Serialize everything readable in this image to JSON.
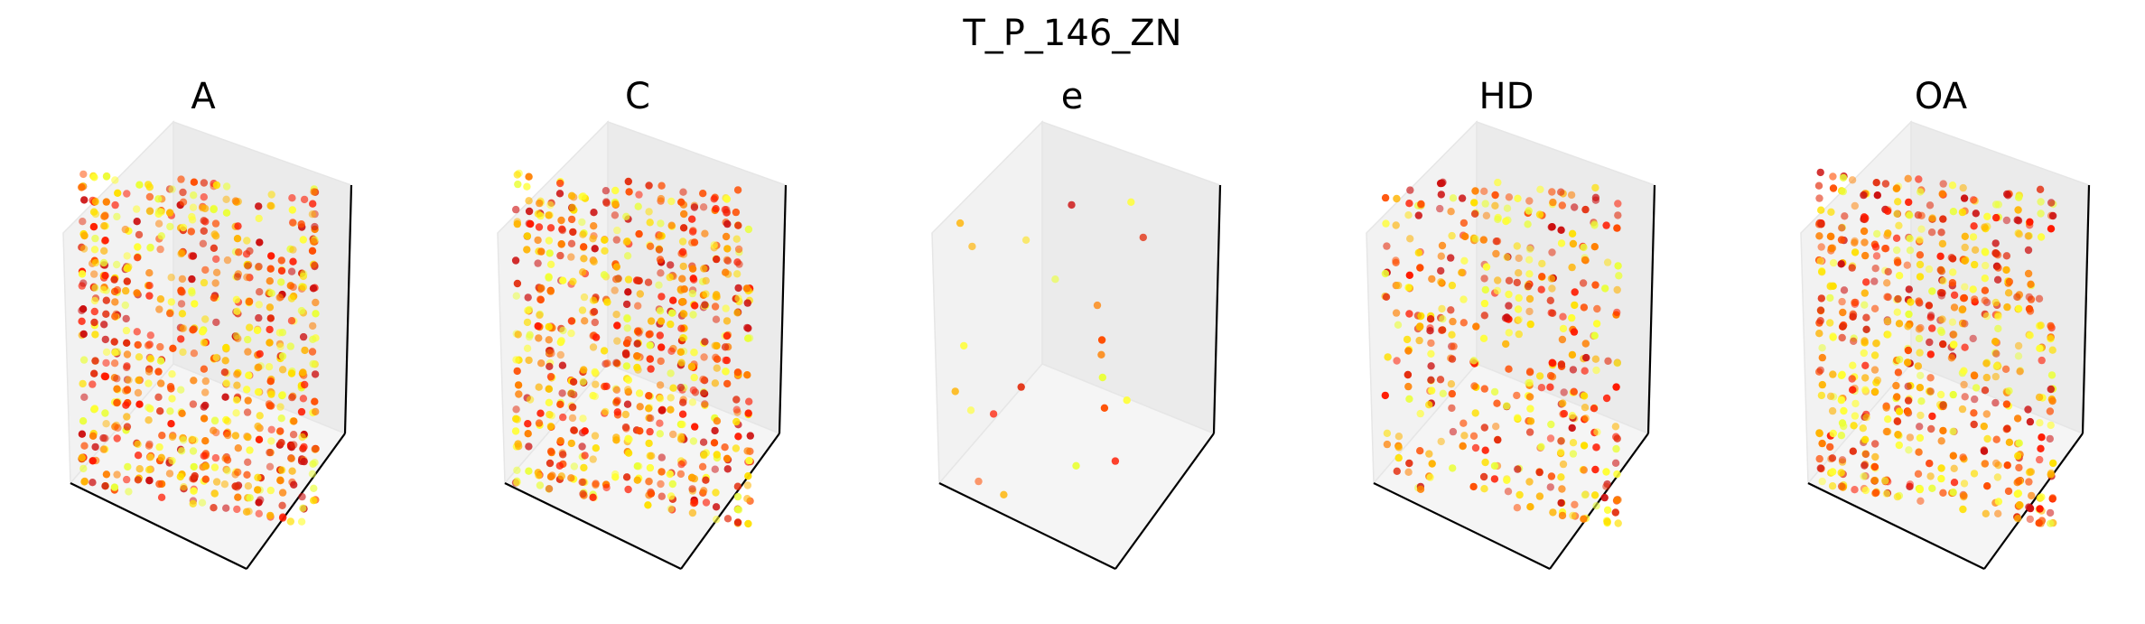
{
  "figure": {
    "title": "T_P_146_ZN"
  },
  "chart_data": [
    {
      "type": "scatter",
      "projection": "3d",
      "title": "A",
      "xlabel": "",
      "ylabel": "",
      "zlabel": "",
      "axis_ticks": false,
      "grid": false,
      "colormap": "autumn",
      "approx_point_count": 700,
      "density": "dense",
      "pattern": "voxel-grid"
    },
    {
      "type": "scatter",
      "projection": "3d",
      "title": "C",
      "xlabel": "",
      "ylabel": "",
      "zlabel": "",
      "axis_ticks": false,
      "grid": false,
      "colormap": "autumn",
      "approx_point_count": 700,
      "density": "dense",
      "pattern": "voxel-grid"
    },
    {
      "type": "scatter",
      "projection": "3d",
      "title": "e",
      "xlabel": "",
      "ylabel": "",
      "zlabel": "",
      "axis_ticks": false,
      "grid": false,
      "colormap": "autumn",
      "approx_point_count": 22,
      "density": "sparse",
      "pattern": "isolated"
    },
    {
      "type": "scatter",
      "projection": "3d",
      "title": "HD",
      "xlabel": "",
      "ylabel": "",
      "zlabel": "",
      "axis_ticks": false,
      "grid": false,
      "colormap": "autumn",
      "approx_point_count": 420,
      "density": "medium",
      "pattern": "voxel-grid"
    },
    {
      "type": "scatter",
      "projection": "3d",
      "title": "OA",
      "xlabel": "",
      "ylabel": "",
      "zlabel": "",
      "axis_ticks": false,
      "grid": false,
      "colormap": "autumn",
      "approx_point_count": 650,
      "density": "dense",
      "pattern": "voxel-grid"
    }
  ],
  "colors": {
    "pane_left": "#f2f2f2",
    "pane_back": "#ebebeb",
    "pane_floor": "#f5f5f5",
    "axis_line": "#000000",
    "pane_edge": "#e6e6e6",
    "palette": [
      "#cc1010",
      "#e32c0c",
      "#ff1a00",
      "#ff4d00",
      "#ff8000",
      "#ffb300",
      "#ffe000",
      "#ffff33",
      "#eaff3a"
    ]
  }
}
